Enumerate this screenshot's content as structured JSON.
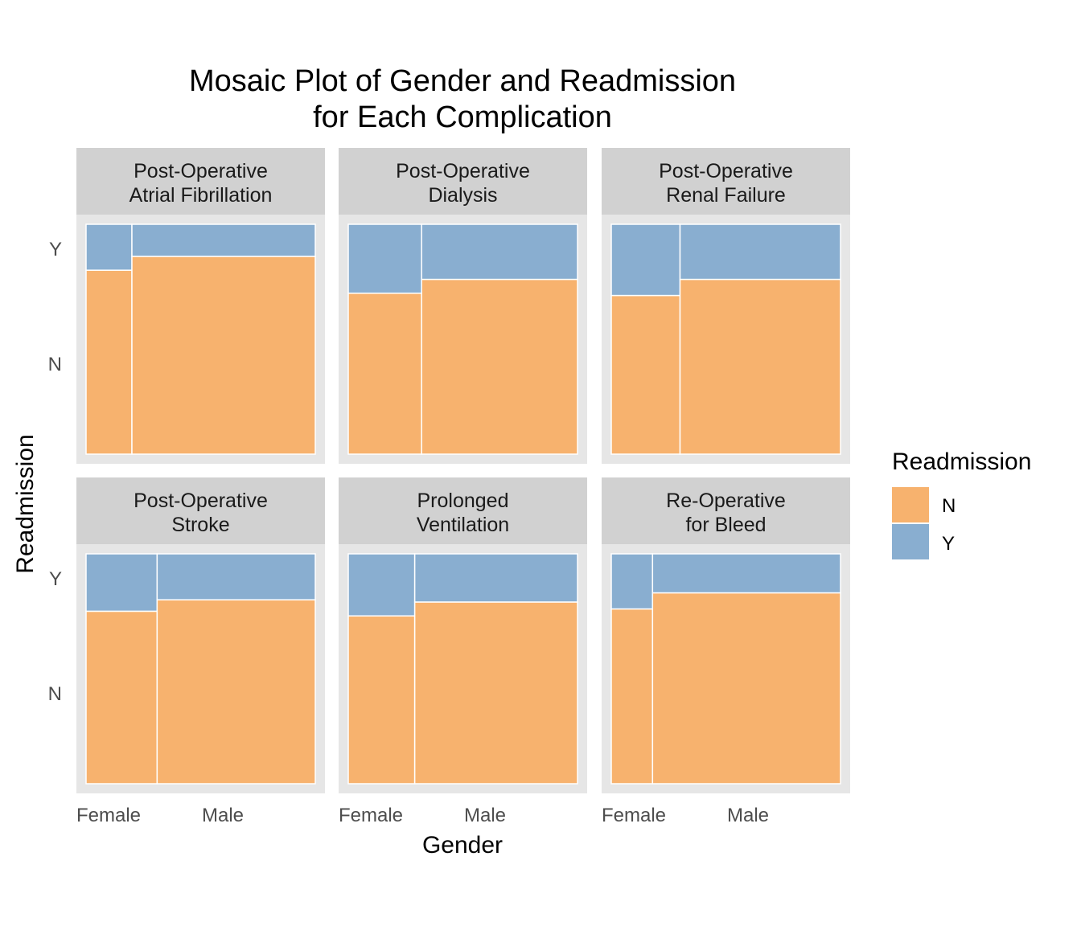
{
  "chart_data": {
    "type": "mosaic",
    "title": [
      "Mosaic Plot of Gender and Readmission",
      "for Each Complication"
    ],
    "xlabel": "Gender",
    "ylabel": "Readmission",
    "x_categories": [
      "Female",
      "Male"
    ],
    "y_categories": [
      "N",
      "Y"
    ],
    "legend": {
      "title": "Readmission",
      "placement": "right",
      "entries": [
        {
          "label": "N",
          "color": "#F7B26E"
        },
        {
          "label": "Y",
          "color": "#89AED0"
        }
      ]
    },
    "colors": {
      "N": "#F7B26E",
      "Y": "#89AED0",
      "panel_bg": "#E6E6E6",
      "strip_bg": "#D1D1D1"
    },
    "panels": [
      {
        "name": "post-op-atrial-fibrillation",
        "label": [
          "Post-Operative",
          "Atrial Fibrillation"
        ],
        "female_share": 0.2,
        "readmit_rate": {
          "Female": 0.2,
          "Male": 0.14
        }
      },
      {
        "name": "post-op-dialysis",
        "label": [
          "Post-Operative",
          "Dialysis"
        ],
        "female_share": 0.32,
        "readmit_rate": {
          "Female": 0.3,
          "Male": 0.24
        }
      },
      {
        "name": "post-op-renal-failure",
        "label": [
          "Post-Operative",
          "Renal Failure"
        ],
        "female_share": 0.3,
        "readmit_rate": {
          "Female": 0.31,
          "Male": 0.24
        }
      },
      {
        "name": "post-op-stroke",
        "label": [
          "Post-Operative",
          "Stroke"
        ],
        "female_share": 0.31,
        "readmit_rate": {
          "Female": 0.25,
          "Male": 0.2
        }
      },
      {
        "name": "prolonged-ventilation",
        "label": [
          "Prolonged",
          "Ventilation"
        ],
        "female_share": 0.29,
        "readmit_rate": {
          "Female": 0.27,
          "Male": 0.21
        }
      },
      {
        "name": "re-op-for-bleed",
        "label": [
          "Re-Operative",
          "for Bleed"
        ],
        "female_share": 0.18,
        "readmit_rate": {
          "Female": 0.24,
          "Male": 0.17
        }
      }
    ]
  }
}
